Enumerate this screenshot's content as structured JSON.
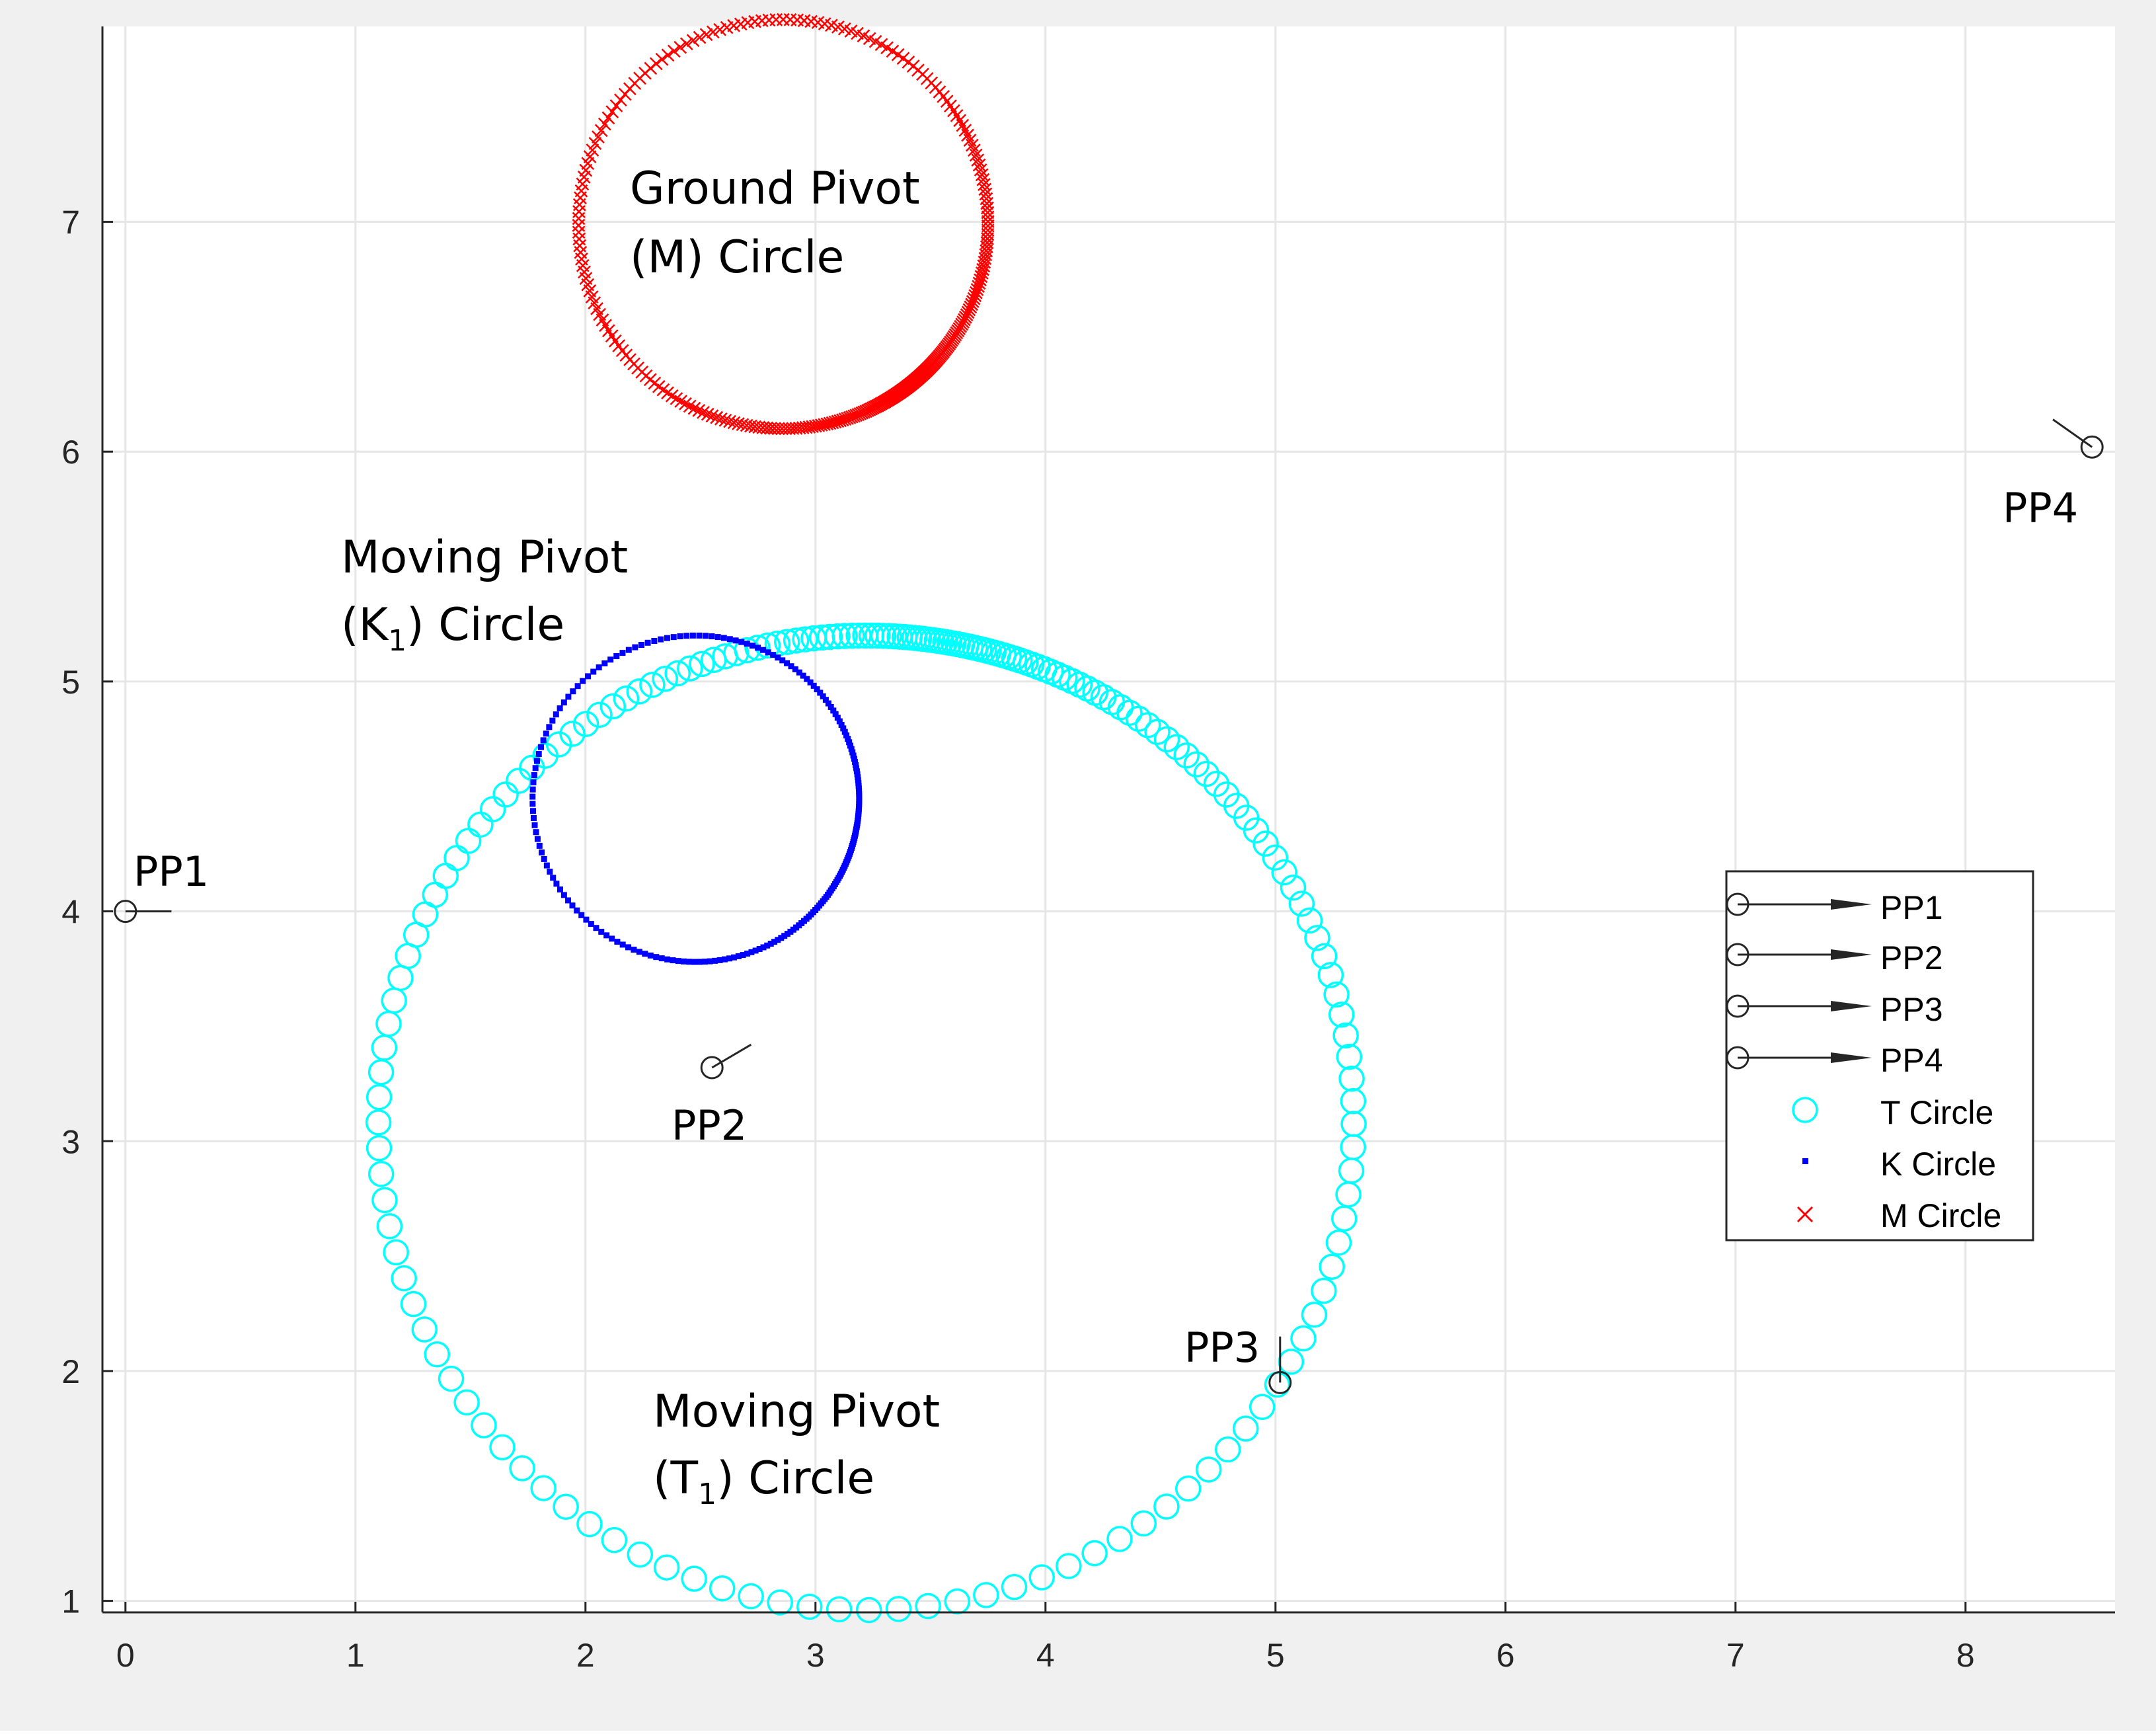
{
  "chart_data": {
    "type": "scatter",
    "title": "",
    "xlabel": "",
    "ylabel": "",
    "xlim": [
      -0.1,
      8.65
    ],
    "ylim": [
      0.95,
      7.85
    ],
    "grid": true,
    "xticks": [
      "0",
      "1",
      "2",
      "3",
      "4",
      "5",
      "6",
      "7",
      "8"
    ],
    "yticks": [
      "1",
      "2",
      "3",
      "4",
      "5",
      "6",
      "7"
    ],
    "legend_position": "right",
    "series": [
      {
        "name": "T Circle",
        "marker": "circle",
        "color": "#00ffff",
        "center": [
          3.22,
          3.08
        ],
        "radius": 2.12,
        "count": 180
      },
      {
        "name": "K Circle",
        "marker": "point",
        "color": "#0000ff",
        "center": [
          2.48,
          4.49
        ],
        "radius": 0.71,
        "count": 220
      },
      {
        "name": "M Circle",
        "marker": "x",
        "color": "#ff0000",
        "center": [
          2.86,
          6.99
        ],
        "radius": 0.89,
        "count": 300
      }
    ],
    "precision_points": [
      {
        "name": "PP1",
        "label": "PP1",
        "x": 0.0,
        "y": 4.0,
        "dx": 0.2,
        "dy": 0.0
      },
      {
        "name": "PP2",
        "label": "PP2",
        "x": 2.55,
        "y": 3.32,
        "dx": 0.17,
        "dy": 0.1
      },
      {
        "name": "PP3",
        "label": "PP3",
        "x": 5.02,
        "y": 1.95,
        "dx": 0.0,
        "dy": 0.2
      },
      {
        "name": "PP4",
        "label": "PP4",
        "x": 8.55,
        "y": 6.02,
        "dx": -0.17,
        "dy": 0.12
      }
    ],
    "legend_entries": [
      "PP1",
      "PP2",
      "PP3",
      "PP4",
      "T Circle",
      "K Circle",
      "M Circle"
    ],
    "annotations": [
      {
        "id": "ground-pivot",
        "lines": [
          "Ground Pivot",
          "(M) Circle"
        ]
      },
      {
        "id": "moving-pivot-k",
        "line1": "Moving Pivot",
        "pre": "(K",
        "sub": "1",
        "post": ") Circle"
      },
      {
        "id": "moving-pivot-t",
        "line1": "Moving Pivot",
        "pre": "(T",
        "sub": "1",
        "post": ") Circle"
      }
    ]
  },
  "colors": {
    "axes_bg": "#ffffff",
    "figure_bg": "#f0f0f0",
    "grid": "#e6e6e6",
    "axis": "#262626"
  }
}
